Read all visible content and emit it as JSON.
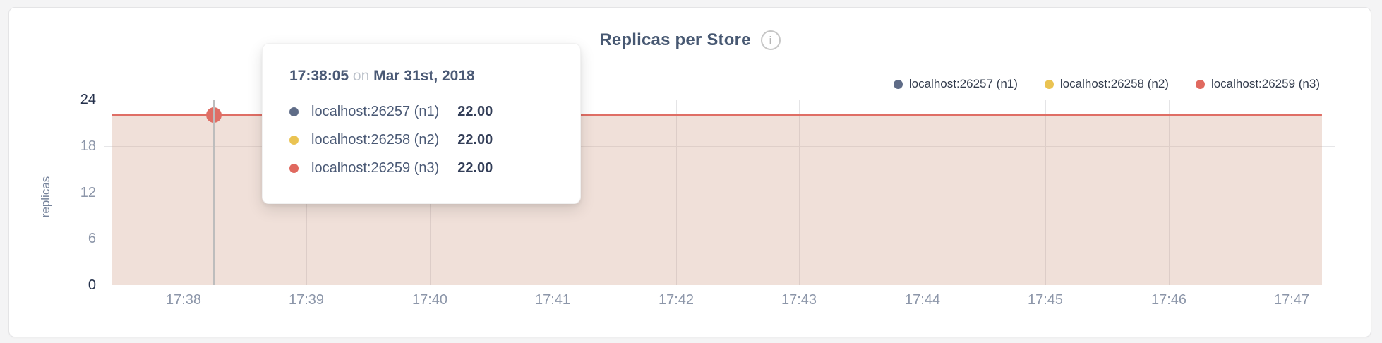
{
  "header": {
    "title": "Replicas per Store",
    "info_icon": "i"
  },
  "legend": {
    "items": [
      {
        "label": "localhost:26257 (n1)",
        "color": "#5f6c87"
      },
      {
        "label": "localhost:26258 (n2)",
        "color": "#eac352"
      },
      {
        "label": "localhost:26259 (n3)",
        "color": "#e0695f"
      }
    ]
  },
  "tooltip": {
    "time": "17:38:05",
    "connector": "on",
    "date": "Mar 31st, 2018",
    "rows": [
      {
        "label": "localhost:26257 (n1)",
        "value": "22.00",
        "color": "#5f6c87"
      },
      {
        "label": "localhost:26258 (n2)",
        "value": "22.00",
        "color": "#eac352"
      },
      {
        "label": "localhost:26259 (n3)",
        "value": "22.00",
        "color": "#e0695f"
      }
    ]
  },
  "chart_data": {
    "type": "area",
    "title": "Replicas per Store",
    "xlabel": "",
    "ylabel": "replicas",
    "x": [
      "17:38",
      "17:39",
      "17:40",
      "17:41",
      "17:42",
      "17:43",
      "17:44",
      "17:45",
      "17:46",
      "17:47"
    ],
    "yticks": [
      0,
      6,
      12,
      18,
      24
    ],
    "ylim": [
      0,
      24
    ],
    "grid": true,
    "legend_position": "top-right",
    "series": [
      {
        "name": "localhost:26257 (n1)",
        "color": "#5f6c87",
        "values": [
          22,
          22,
          22,
          22,
          22,
          22,
          22,
          22,
          22,
          22
        ]
      },
      {
        "name": "localhost:26258 (n2)",
        "color": "#eac352",
        "values": [
          22,
          22,
          22,
          22,
          22,
          22,
          22,
          22,
          22,
          22
        ]
      },
      {
        "name": "localhost:26259 (n3)",
        "color": "#e0695f",
        "values": [
          22,
          22,
          22,
          22,
          22,
          22,
          22,
          22,
          22,
          22
        ]
      }
    ],
    "hover_point": {
      "time": "17:38:05",
      "value": 22,
      "series": "localhost:26259 (n3)"
    },
    "colors": {
      "line": "#df6e65",
      "fill": "rgba(209,159,137,0.32)",
      "guideline": "#bdbdbd",
      "grid": "#e4e4e6",
      "axis_text": "#8c96a9",
      "axis_text_edge": "#24304b",
      "title_text": "#475872"
    }
  }
}
